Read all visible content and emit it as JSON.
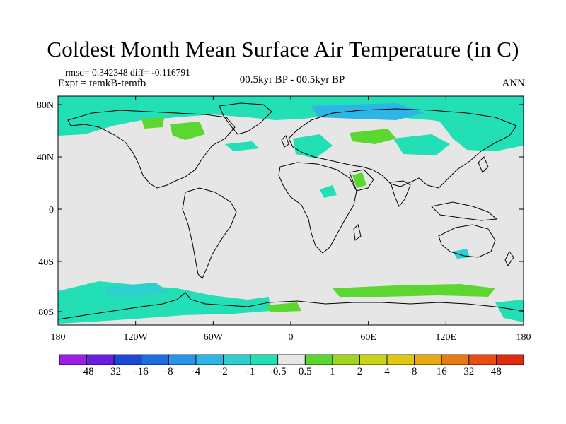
{
  "title": "Coldest Month Mean Surface Air Temperature (in C)",
  "stats": "rmsd= 0.342348 diff= -0.116791",
  "experiment": "Expt = temkB-temfb",
  "period": "00.5kyr BP - 00.5kyr BP",
  "season": "ANN",
  "lat_labels": [
    "80N",
    "40N",
    "0",
    "40S",
    "80S"
  ],
  "lon_labels": [
    "180",
    "120W",
    "60W",
    "0",
    "60E",
    "120E",
    "180"
  ],
  "colorbar": {
    "colors": [
      "#9b1ee6",
      "#6a1de0",
      "#1c48d8",
      "#1e6de0",
      "#2a95e8",
      "#2fb4e6",
      "#2dcfcf",
      "#22dfb6",
      "#e6e6e6",
      "#5cd630",
      "#a0d41e",
      "#c8d418",
      "#e0c810",
      "#e8a810",
      "#e87a12",
      "#e84e14",
      "#e02a10"
    ],
    "labels": [
      "-48",
      "-32",
      "-16",
      "-8",
      "-4",
      "-2",
      "-1",
      "-0.5",
      "0.5",
      "1",
      "2",
      "4",
      "8",
      "16",
      "32",
      "48"
    ]
  },
  "map_colors": {
    "background": "#e6e6e6",
    "cool_light": "#22dfb6",
    "cool_medium": "#2dcfcf",
    "cool_strong": "#2fb4e6",
    "warm_light": "#5cd630",
    "coast": "#000000"
  }
}
